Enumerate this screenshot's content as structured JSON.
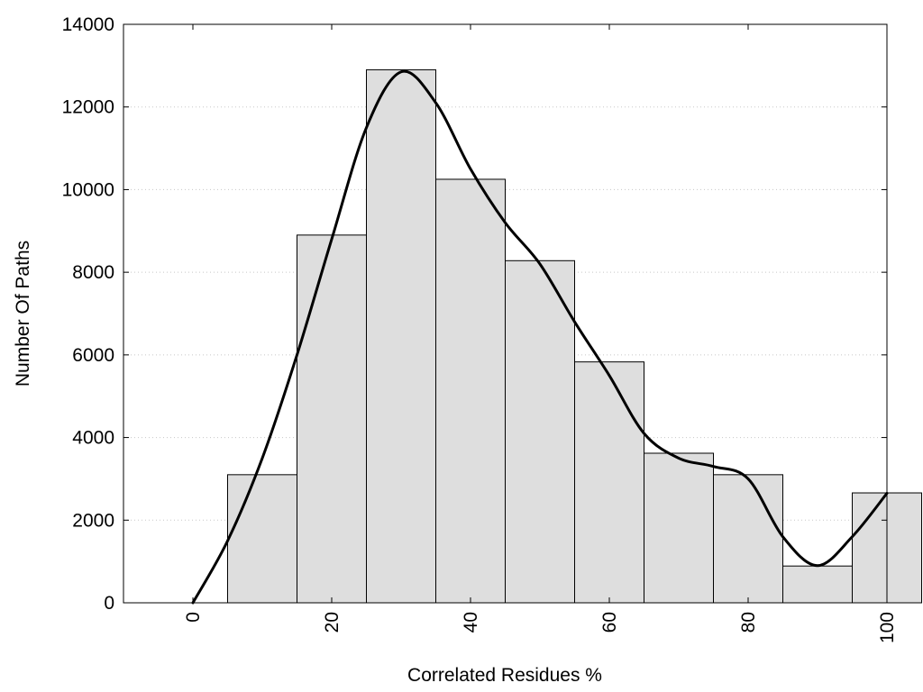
{
  "chart_data": {
    "type": "bar",
    "xlabel": "Correlated Residues %",
    "ylabel": "Number Of Paths",
    "xlim": [
      -10,
      100
    ],
    "ylim": [
      0,
      14000
    ],
    "x_ticks": [
      0,
      20,
      40,
      60,
      80,
      100
    ],
    "y_ticks": [
      0,
      2000,
      4000,
      6000,
      8000,
      10000,
      12000,
      14000
    ],
    "bin_width": 10,
    "categories": [
      10,
      20,
      30,
      40,
      50,
      60,
      70,
      80,
      90,
      100
    ],
    "values": [
      3100,
      8900,
      12900,
      10250,
      8280,
      5830,
      3620,
      3100,
      890,
      2660
    ],
    "curve": {
      "x": [
        0,
        5,
        10,
        15,
        20,
        25,
        30,
        35,
        40,
        45,
        50,
        55,
        60,
        65,
        70,
        75,
        80,
        85,
        90,
        95,
        100
      ],
      "y": [
        0,
        1500,
        3500,
        6000,
        8800,
        11500,
        12850,
        12100,
        10500,
        9200,
        8200,
        6800,
        5500,
        4100,
        3500,
        3300,
        3000,
        1600,
        900,
        1600,
        2650
      ]
    },
    "grid": "horizontal dotted",
    "legend": "none"
  }
}
